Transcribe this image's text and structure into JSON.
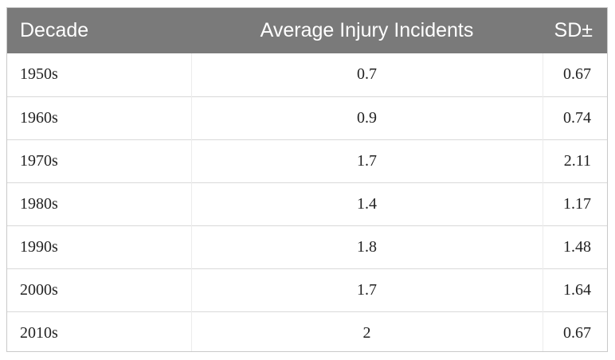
{
  "table": {
    "headers": [
      "Decade",
      "Average Injury Incidents",
      "SD±"
    ],
    "rows": [
      [
        "1950s",
        "0.7",
        "0.67"
      ],
      [
        "1960s",
        "0.9",
        "0.74"
      ],
      [
        "1970s",
        "1.7",
        "2.11"
      ],
      [
        "1980s",
        "1.4",
        "1.17"
      ],
      [
        "1990s",
        "1.8",
        "1.48"
      ],
      [
        "2000s",
        "1.7",
        "1.64"
      ],
      [
        "2010s",
        "2",
        "0.67"
      ]
    ]
  },
  "colors": {
    "header_background": "#7a7a7a",
    "header_text": "#ffffff",
    "row_divider": "#d9d9d9"
  }
}
